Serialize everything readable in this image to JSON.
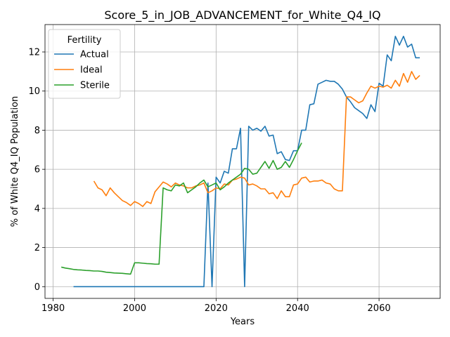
{
  "chart_data": {
    "type": "line",
    "title": "Score_5_in_JOB_ADVANCEMENT_for_White_Q4_IQ",
    "xlabel": "Years",
    "ylabel": "% of White Q4_IQ Population",
    "xlim": [
      1978,
      2075
    ],
    "ylim": [
      -0.6,
      13.4
    ],
    "xticks": [
      1980,
      2000,
      2020,
      2040,
      2060
    ],
    "yticks": [
      0,
      2,
      4,
      6,
      8,
      10,
      12
    ],
    "grid": true,
    "legend": {
      "title": "Fertility",
      "placement": "top-left"
    },
    "series": [
      {
        "name": "Actual",
        "color": "#1f77b4",
        "x": [
          1985,
          1986,
          1987,
          1988,
          1989,
          1990,
          1991,
          1992,
          1993,
          1994,
          1995,
          1996,
          1997,
          1998,
          1999,
          2000,
          2001,
          2002,
          2003,
          2004,
          2005,
          2006,
          2007,
          2008,
          2009,
          2010,
          2011,
          2012,
          2013,
          2014,
          2015,
          2016,
          2017,
          2018,
          2019,
          2020,
          2021,
          2022,
          2023,
          2024,
          2025,
          2026,
          2027,
          2028,
          2029,
          2030,
          2031,
          2032,
          2033,
          2034,
          2035,
          2036,
          2037,
          2038,
          2039,
          2040,
          2041,
          2042,
          2043,
          2044,
          2045,
          2046,
          2047,
          2048,
          2049,
          2050,
          2051,
          2052,
          2053,
          2054,
          2055,
          2056,
          2057,
          2058,
          2059,
          2060,
          2061,
          2062,
          2063,
          2064,
          2065,
          2066,
          2067,
          2068,
          2069,
          2070
        ],
        "values": [
          0,
          0,
          0,
          0,
          0,
          0,
          0,
          0,
          0,
          0,
          0,
          0,
          0,
          0,
          0,
          0,
          0,
          0,
          0,
          0,
          0,
          0,
          0,
          0,
          0,
          0,
          0,
          0,
          0,
          0,
          0,
          0,
          0,
          5.3,
          0,
          5.6,
          5.3,
          5.9,
          5.8,
          7.05,
          7.05,
          8.1,
          0,
          8.2,
          8.0,
          8.1,
          7.95,
          8.2,
          7.7,
          7.75,
          6.8,
          6.9,
          6.5,
          6.45,
          6.95,
          6.95,
          8.0,
          8.0,
          9.3,
          9.35,
          10.35,
          10.45,
          10.55,
          10.5,
          10.5,
          10.35,
          10.1,
          9.7,
          9.45,
          9.15,
          9.0,
          8.85,
          8.6,
          9.3,
          8.95,
          10.4,
          10.25,
          11.85,
          11.55,
          12.8,
          12.35,
          12.8,
          12.25,
          12.4,
          11.7,
          11.7
        ]
      },
      {
        "name": "Ideal",
        "color": "#ff7f0e",
        "x": [
          1990,
          1991,
          1992,
          1993,
          1994,
          1995,
          1996,
          1997,
          1998,
          1999,
          2000,
          2001,
          2002,
          2003,
          2004,
          2005,
          2006,
          2007,
          2008,
          2009,
          2010,
          2011,
          2012,
          2013,
          2014,
          2015,
          2016,
          2017,
          2018,
          2019,
          2020,
          2021,
          2022,
          2023,
          2024,
          2025,
          2026,
          2027,
          2028,
          2029,
          2030,
          2031,
          2032,
          2033,
          2034,
          2035,
          2036,
          2037,
          2038,
          2039,
          2040,
          2041,
          2042,
          2043,
          2044,
          2045,
          2046,
          2047,
          2048,
          2049,
          2050,
          2051,
          2052,
          2053,
          2054,
          2055,
          2056,
          2057,
          2058,
          2059,
          2060,
          2061,
          2062,
          2063,
          2064,
          2065,
          2066,
          2067,
          2068,
          2069,
          2070
        ],
        "values": [
          5.4,
          5.05,
          4.95,
          4.65,
          5.05,
          4.8,
          4.6,
          4.4,
          4.3,
          4.15,
          4.35,
          4.25,
          4.1,
          4.35,
          4.25,
          4.85,
          5.1,
          5.35,
          5.25,
          5.1,
          5.3,
          5.2,
          5.15,
          5.05,
          5.05,
          5.15,
          5.2,
          5.3,
          4.8,
          4.9,
          5.05,
          5.0,
          5.25,
          5.2,
          5.45,
          5.5,
          5.6,
          5.55,
          5.2,
          5.25,
          5.15,
          5.0,
          5.0,
          4.75,
          4.8,
          4.5,
          4.9,
          4.6,
          4.6,
          5.2,
          5.25,
          5.55,
          5.6,
          5.35,
          5.4,
          5.4,
          5.45,
          5.3,
          5.25,
          5.0,
          4.9,
          4.9,
          9.7,
          9.7,
          9.55,
          9.4,
          9.5,
          9.9,
          10.25,
          10.15,
          10.25,
          10.2,
          10.3,
          10.15,
          10.55,
          10.25,
          10.9,
          10.45,
          11.0,
          10.6,
          10.8
        ]
      },
      {
        "name": "Sterile",
        "color": "#2ca02c",
        "x": [
          1982,
          1983,
          1984,
          1985,
          1986,
          1987,
          1988,
          1989,
          1990,
          1991,
          1992,
          1993,
          1994,
          1995,
          1996,
          1997,
          1998,
          1999,
          2000,
          2001,
          2002,
          2003,
          2004,
          2005,
          2006,
          2007,
          2008,
          2009,
          2010,
          2011,
          2012,
          2013,
          2014,
          2015,
          2016,
          2017,
          2018,
          2019,
          2020,
          2021,
          2022,
          2023,
          2024,
          2025,
          2026,
          2027,
          2028,
          2029,
          2030,
          2031,
          2032,
          2033,
          2034,
          2035,
          2036,
          2037,
          2038,
          2039,
          2040,
          2041
        ],
        "values": [
          1.0,
          0.95,
          0.92,
          0.88,
          0.86,
          0.85,
          0.83,
          0.82,
          0.8,
          0.8,
          0.78,
          0.74,
          0.72,
          0.7,
          0.69,
          0.68,
          0.66,
          0.64,
          1.22,
          1.22,
          1.2,
          1.18,
          1.17,
          1.15,
          1.15,
          5.05,
          4.95,
          4.9,
          5.2,
          5.15,
          5.3,
          4.8,
          4.95,
          5.1,
          5.3,
          5.45,
          5.1,
          5.2,
          5.3,
          4.95,
          5.1,
          5.3,
          5.45,
          5.6,
          5.75,
          6.05,
          6.0,
          5.75,
          5.8,
          6.1,
          6.4,
          6.05,
          6.45,
          6.0,
          6.1,
          6.4,
          6.1,
          6.5,
          6.95,
          7.35
        ]
      }
    ]
  }
}
